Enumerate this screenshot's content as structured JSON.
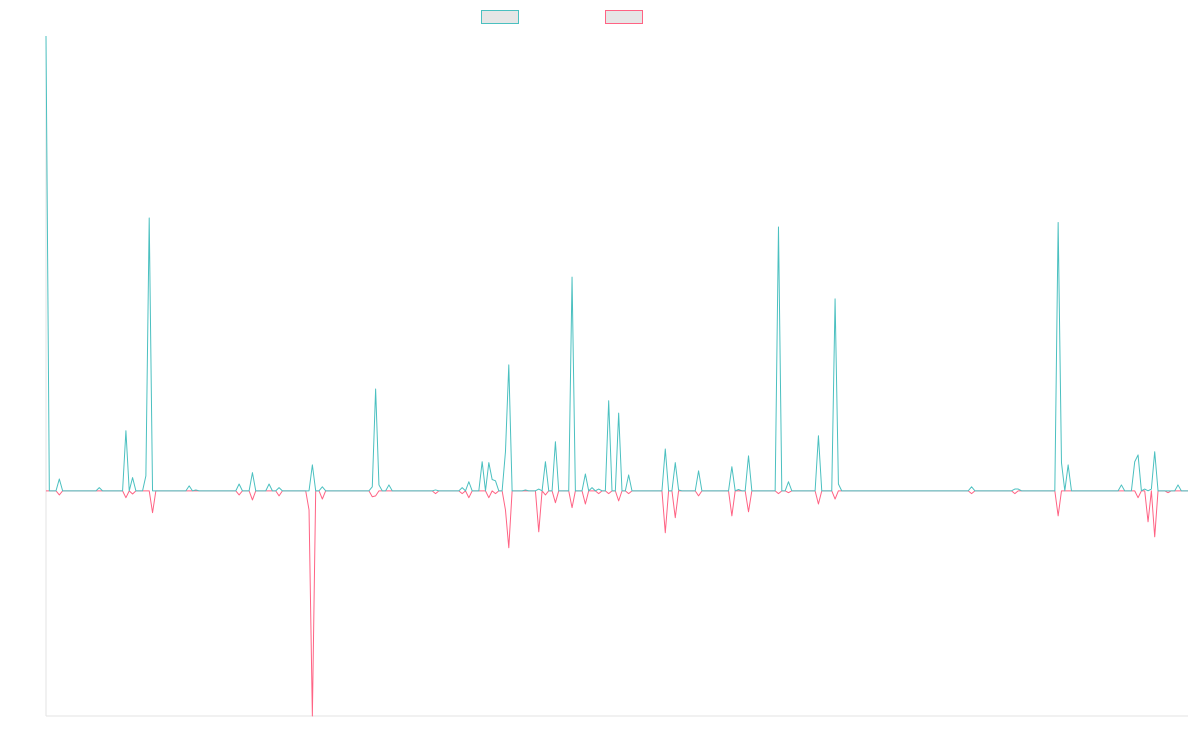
{
  "chart_data": {
    "type": "line",
    "title": "",
    "xlabel": "",
    "ylabel": "",
    "n_points": 344,
    "ylim": [
      -49.5,
      100
    ],
    "grid": false,
    "legend_placement": "top-center",
    "series": [
      {
        "name": "",
        "color": "#4bc0c0",
        "points": [
          [
            0,
            100
          ],
          [
            4,
            2.6
          ],
          [
            16,
            0.7
          ],
          [
            24,
            13.2
          ],
          [
            26,
            2.9
          ],
          [
            30,
            3.3
          ],
          [
            31,
            60
          ],
          [
            43,
            1.1
          ],
          [
            45,
            0.2
          ],
          [
            58,
            1.5
          ],
          [
            62,
            4
          ],
          [
            67,
            1.5
          ],
          [
            70,
            0.7
          ],
          [
            80,
            5.7
          ],
          [
            83,
            0.9
          ],
          [
            98,
            0.9
          ],
          [
            99,
            22.4
          ],
          [
            100,
            1.3
          ],
          [
            103,
            1.3
          ],
          [
            117,
            0.2
          ],
          [
            125,
            0.7
          ],
          [
            127,
            2
          ],
          [
            131,
            6.4
          ],
          [
            133,
            6.2
          ],
          [
            134,
            2.5
          ],
          [
            135,
            2.2
          ],
          [
            138,
            8.6
          ],
          [
            139,
            27.7
          ],
          [
            144,
            0.2
          ],
          [
            148,
            0.4
          ],
          [
            150,
            6.4
          ],
          [
            153,
            10.8
          ],
          [
            158,
            47
          ],
          [
            162,
            3.7
          ],
          [
            164,
            0.7
          ],
          [
            166,
            0.4
          ],
          [
            169,
            19.8
          ],
          [
            172,
            17.1
          ],
          [
            175,
            3.5
          ],
          [
            186,
            9.2
          ],
          [
            189,
            6.2
          ],
          [
            190,
            0.2
          ],
          [
            196,
            4.4
          ],
          [
            206,
            5.3
          ],
          [
            208,
            0.3
          ],
          [
            211,
            7.7
          ],
          [
            220,
            58
          ],
          [
            223,
            2
          ],
          [
            232,
            12.1
          ],
          [
            237,
            42.2
          ],
          [
            238,
            1.5
          ],
          [
            278,
            0.9
          ],
          [
            291,
            0.4
          ],
          [
            292,
            0.4
          ],
          [
            304,
            59
          ],
          [
            305,
            6.2
          ],
          [
            307,
            5.7
          ],
          [
            323,
            1.3
          ],
          [
            327,
            6.4
          ],
          [
            328,
            7.9
          ],
          [
            330,
            0.4
          ],
          [
            332,
            0.4
          ],
          [
            333,
            8.6
          ],
          [
            340,
            1.3
          ]
        ]
      },
      {
        "name": "",
        "color": "#ff6384",
        "points": [
          [
            4,
            -0.9
          ],
          [
            24,
            -1.5
          ],
          [
            26,
            -0.7
          ],
          [
            32,
            -4.8
          ],
          [
            58,
            -0.9
          ],
          [
            62,
            -2
          ],
          [
            70,
            -1.1
          ],
          [
            79,
            -4.2
          ],
          [
            80,
            -49.5
          ],
          [
            83,
            -1.8
          ],
          [
            98,
            -1.3
          ],
          [
            99,
            -1.1
          ],
          [
            117,
            -0.6
          ],
          [
            125,
            -0.6
          ],
          [
            127,
            -1.5
          ],
          [
            133,
            -1.5
          ],
          [
            135,
            -0.6
          ],
          [
            138,
            -4.2
          ],
          [
            139,
            -12.5
          ],
          [
            148,
            -9
          ],
          [
            150,
            -0.9
          ],
          [
            153,
            -2.6
          ],
          [
            158,
            -3.7
          ],
          [
            162,
            -2.9
          ],
          [
            166,
            -0.6
          ],
          [
            169,
            -0.6
          ],
          [
            172,
            -2.2
          ],
          [
            175,
            -0.6
          ],
          [
            186,
            -9.2
          ],
          [
            189,
            -5.9
          ],
          [
            196,
            -1.1
          ],
          [
            206,
            -5.5
          ],
          [
            211,
            -4.6
          ],
          [
            220,
            -0.6
          ],
          [
            223,
            -0.4
          ],
          [
            232,
            -2.9
          ],
          [
            237,
            -1.8
          ],
          [
            278,
            -0.6
          ],
          [
            291,
            -0.6
          ],
          [
            304,
            -5.5
          ],
          [
            328,
            -1.5
          ],
          [
            331,
            -6.8
          ],
          [
            333,
            -10.1
          ],
          [
            337,
            -0.4
          ]
        ]
      }
    ]
  }
}
